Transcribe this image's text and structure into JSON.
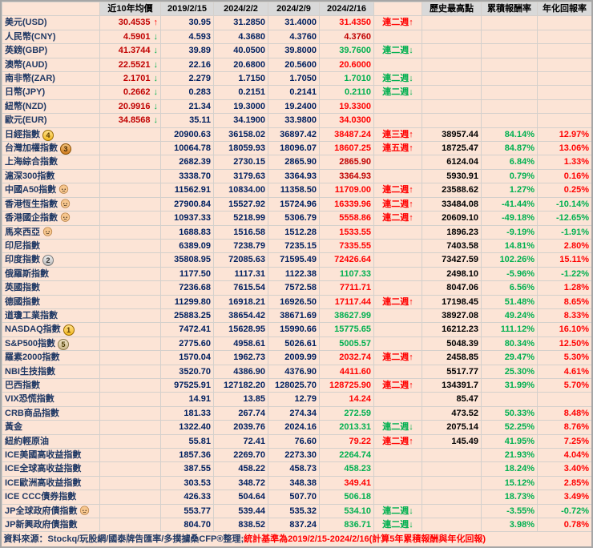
{
  "palette": {
    "bg": "#fce4d6",
    "header-bg": "#d9d9d9",
    "label": "#1f3864",
    "avg": "#c00000",
    "hist": "#002060",
    "up": "#ff0000",
    "down": "#00b050",
    "flat": "#c00000",
    "cum": "#00b050",
    "high": "#000000",
    "note": "#ff0000"
  },
  "chart_data": {
    "type": "table",
    "columns": [
      "",
      "近10年均價",
      "2019/2/15",
      "2024/2/2",
      "2024/2/9",
      "2024/2/16",
      "",
      "歷史最高點",
      "累積報酬率",
      "年化回報率"
    ],
    "rows": [
      {
        "label": "美元(USD)",
        "icon": null,
        "avg10y": "30.4535",
        "trend": "up",
        "d20190215": "30.95",
        "d20240202": "31.2850",
        "d20240209": "31.4000",
        "d20240216": "31.4350",
        "change": "up",
        "streak": "連二週↑",
        "streak_dir": "up",
        "record_high": "",
        "cum_return": "",
        "ann_return": ""
      },
      {
        "label": "人民幣(CNY)",
        "icon": null,
        "avg10y": "4.5901",
        "trend": "down",
        "d20190215": "4.593",
        "d20240202": "4.3680",
        "d20240209": "4.3760",
        "d20240216": "4.3760",
        "change": "flat",
        "streak": "",
        "streak_dir": "",
        "record_high": "",
        "cum_return": "",
        "ann_return": ""
      },
      {
        "label": "英鎊(GBP)",
        "icon": null,
        "avg10y": "41.3744",
        "trend": "down",
        "d20190215": "39.89",
        "d20240202": "40.0500",
        "d20240209": "39.8000",
        "d20240216": "39.7600",
        "change": "down",
        "streak": "連二週↓",
        "streak_dir": "down",
        "record_high": "",
        "cum_return": "",
        "ann_return": ""
      },
      {
        "label": "澳幣(AUD)",
        "icon": null,
        "avg10y": "22.5521",
        "trend": "down",
        "d20190215": "22.16",
        "d20240202": "20.6800",
        "d20240209": "20.5600",
        "d20240216": "20.6000",
        "change": "up",
        "streak": "",
        "streak_dir": "",
        "record_high": "",
        "cum_return": "",
        "ann_return": ""
      },
      {
        "label": "南非幣(ZAR)",
        "icon": null,
        "avg10y": "2.1701",
        "trend": "down",
        "d20190215": "2.279",
        "d20240202": "1.7150",
        "d20240209": "1.7050",
        "d20240216": "1.7010",
        "change": "down",
        "streak": "連二週↓",
        "streak_dir": "down",
        "record_high": "",
        "cum_return": "",
        "ann_return": ""
      },
      {
        "label": "日幣(JPY)",
        "icon": null,
        "avg10y": "0.2662",
        "trend": "down",
        "d20190215": "0.283",
        "d20240202": "0.2151",
        "d20240209": "0.2141",
        "d20240216": "0.2110",
        "change": "down",
        "streak": "連二週↓",
        "streak_dir": "down",
        "record_high": "",
        "cum_return": "",
        "ann_return": ""
      },
      {
        "label": "紐幣(NZD)",
        "icon": null,
        "avg10y": "20.9916",
        "trend": "down",
        "d20190215": "21.34",
        "d20240202": "19.3000",
        "d20240209": "19.2400",
        "d20240216": "19.3300",
        "change": "up",
        "streak": "",
        "streak_dir": "",
        "record_high": "",
        "cum_return": "",
        "ann_return": ""
      },
      {
        "label": "歐元(EUR)",
        "icon": null,
        "avg10y": "34.8568",
        "trend": "down",
        "d20190215": "35.11",
        "d20240202": "34.1900",
        "d20240209": "33.9800",
        "d20240216": "34.0300",
        "change": "up",
        "streak": "",
        "streak_dir": "",
        "record_high": "",
        "cum_return": "",
        "ann_return": ""
      },
      {
        "label": "日經指數",
        "icon": "medal-4",
        "avg10y": "",
        "trend": "",
        "d20190215": "20900.63",
        "d20240202": "36158.02",
        "d20240209": "36897.42",
        "d20240216": "38487.24",
        "change": "up",
        "streak": "連三週↑",
        "streak_dir": "up",
        "record_high": "38957.44",
        "cum_return": "84.14%",
        "ann_return": "12.97%"
      },
      {
        "label": "台灣加權指數",
        "icon": "medal-3",
        "avg10y": "",
        "trend": "",
        "d20190215": "10064.78",
        "d20240202": "18059.93",
        "d20240209": "18096.07",
        "d20240216": "18607.25",
        "change": "up",
        "streak": "連五週↑",
        "streak_dir": "up",
        "record_high": "18725.47",
        "cum_return": "84.87%",
        "ann_return": "13.06%"
      },
      {
        "label": "上海綜合指數",
        "icon": null,
        "avg10y": "",
        "trend": "",
        "d20190215": "2682.39",
        "d20240202": "2730.15",
        "d20240209": "2865.90",
        "d20240216": "2865.90",
        "change": "flat",
        "streak": "",
        "streak_dir": "",
        "record_high": "6124.04",
        "cum_return": "6.84%",
        "ann_return": "1.33%"
      },
      {
        "label": "滬深300指數",
        "icon": null,
        "avg10y": "",
        "trend": "",
        "d20190215": "3338.70",
        "d20240202": "3179.63",
        "d20240209": "3364.93",
        "d20240216": "3364.93",
        "change": "flat",
        "streak": "",
        "streak_dir": "",
        "record_high": "5930.91",
        "cum_return": "0.79%",
        "ann_return": "0.16%"
      },
      {
        "label": "中國A50指數",
        "icon": "baby",
        "avg10y": "",
        "trend": "",
        "d20190215": "11562.91",
        "d20240202": "10834.00",
        "d20240209": "11358.50",
        "d20240216": "11709.00",
        "change": "up",
        "streak": "連二週↑",
        "streak_dir": "up",
        "record_high": "23588.62",
        "cum_return": "1.27%",
        "ann_return": "0.25%"
      },
      {
        "label": "香港恆生指數",
        "icon": "baby",
        "avg10y": "",
        "trend": "",
        "d20190215": "27900.84",
        "d20240202": "15527.92",
        "d20240209": "15724.96",
        "d20240216": "16339.96",
        "change": "up",
        "streak": "連二週↑",
        "streak_dir": "up",
        "record_high": "33484.08",
        "cum_return": "-41.44%",
        "ann_return": "-10.14%"
      },
      {
        "label": "香港國企指數",
        "icon": "baby",
        "avg10y": "",
        "trend": "",
        "d20190215": "10937.33",
        "d20240202": "5218.99",
        "d20240209": "5306.79",
        "d20240216": "5558.86",
        "change": "up",
        "streak": "連二週↑",
        "streak_dir": "up",
        "record_high": "20609.10",
        "cum_return": "-49.18%",
        "ann_return": "-12.65%"
      },
      {
        "label": "馬來西亞",
        "icon": "baby",
        "avg10y": "",
        "trend": "",
        "d20190215": "1688.83",
        "d20240202": "1516.58",
        "d20240209": "1512.28",
        "d20240216": "1533.55",
        "change": "up",
        "streak": "",
        "streak_dir": "",
        "record_high": "1896.23",
        "cum_return": "-9.19%",
        "ann_return": "-1.91%"
      },
      {
        "label": "印尼指數",
        "icon": null,
        "avg10y": "",
        "trend": "",
        "d20190215": "6389.09",
        "d20240202": "7238.79",
        "d20240209": "7235.15",
        "d20240216": "7335.55",
        "change": "up",
        "streak": "",
        "streak_dir": "",
        "record_high": "7403.58",
        "cum_return": "14.81%",
        "ann_return": "2.80%"
      },
      {
        "label": "印度指數",
        "icon": "medal-2",
        "avg10y": "",
        "trend": "",
        "d20190215": "35808.95",
        "d20240202": "72085.63",
        "d20240209": "71595.49",
        "d20240216": "72426.64",
        "change": "up",
        "streak": "",
        "streak_dir": "",
        "record_high": "73427.59",
        "cum_return": "102.26%",
        "ann_return": "15.11%"
      },
      {
        "label": "俄羅斯指數",
        "icon": null,
        "avg10y": "",
        "trend": "",
        "d20190215": "1177.50",
        "d20240202": "1117.31",
        "d20240209": "1122.38",
        "d20240216": "1107.33",
        "change": "down",
        "streak": "",
        "streak_dir": "",
        "record_high": "2498.10",
        "cum_return": "-5.96%",
        "ann_return": "-1.22%"
      },
      {
        "label": "英國指數",
        "icon": null,
        "avg10y": "",
        "trend": "",
        "d20190215": "7236.68",
        "d20240202": "7615.54",
        "d20240209": "7572.58",
        "d20240216": "7711.71",
        "change": "up",
        "streak": "",
        "streak_dir": "",
        "record_high": "8047.06",
        "cum_return": "6.56%",
        "ann_return": "1.28%"
      },
      {
        "label": "德國指數",
        "icon": null,
        "avg10y": "",
        "trend": "",
        "d20190215": "11299.80",
        "d20240202": "16918.21",
        "d20240209": "16926.50",
        "d20240216": "17117.44",
        "change": "up",
        "streak": "連二週↑",
        "streak_dir": "up",
        "record_high": "17198.45",
        "cum_return": "51.48%",
        "ann_return": "8.65%"
      },
      {
        "label": "道瓊工業指數",
        "icon": null,
        "avg10y": "",
        "trend": "",
        "d20190215": "25883.25",
        "d20240202": "38654.42",
        "d20240209": "38671.69",
        "d20240216": "38627.99",
        "change": "down",
        "streak": "",
        "streak_dir": "",
        "record_high": "38927.08",
        "cum_return": "49.24%",
        "ann_return": "8.33%"
      },
      {
        "label": "NASDAQ指數",
        "icon": "medal-1",
        "avg10y": "",
        "trend": "",
        "d20190215": "7472.41",
        "d20240202": "15628.95",
        "d20240209": "15990.66",
        "d20240216": "15775.65",
        "change": "down",
        "streak": "",
        "streak_dir": "",
        "record_high": "16212.23",
        "cum_return": "111.12%",
        "ann_return": "16.10%"
      },
      {
        "label": "S&P500指數",
        "icon": "medal-5",
        "avg10y": "",
        "trend": "",
        "d20190215": "2775.60",
        "d20240202": "4958.61",
        "d20240209": "5026.61",
        "d20240216": "5005.57",
        "change": "down",
        "streak": "",
        "streak_dir": "",
        "record_high": "5048.39",
        "cum_return": "80.34%",
        "ann_return": "12.50%"
      },
      {
        "label": "羅素2000指數",
        "icon": null,
        "avg10y": "",
        "trend": "",
        "d20190215": "1570.04",
        "d20240202": "1962.73",
        "d20240209": "2009.99",
        "d20240216": "2032.74",
        "change": "up",
        "streak": "連二週↑",
        "streak_dir": "up",
        "record_high": "2458.85",
        "cum_return": "29.47%",
        "ann_return": "5.30%"
      },
      {
        "label": "NBI生技指數",
        "icon": null,
        "avg10y": "",
        "trend": "",
        "d20190215": "3520.70",
        "d20240202": "4386.90",
        "d20240209": "4376.90",
        "d20240216": "4411.60",
        "change": "up",
        "streak": "",
        "streak_dir": "",
        "record_high": "5517.77",
        "cum_return": "25.30%",
        "ann_return": "4.61%"
      },
      {
        "label": "巴西指數",
        "icon": null,
        "avg10y": "",
        "trend": "",
        "d20190215": "97525.91",
        "d20240202": "127182.20",
        "d20240209": "128025.70",
        "d20240216": "128725.90",
        "change": "up",
        "streak": "連二週↑",
        "streak_dir": "up",
        "record_high": "134391.7",
        "cum_return": "31.99%",
        "ann_return": "5.70%"
      },
      {
        "label": "VIX恐慌指數",
        "icon": null,
        "avg10y": "",
        "trend": "",
        "d20190215": "14.91",
        "d20240202": "13.85",
        "d20240209": "12.79",
        "d20240216": "14.24",
        "change": "up",
        "streak": "",
        "streak_dir": "",
        "record_high": "85.47",
        "cum_return": "",
        "ann_return": ""
      },
      {
        "label": "CRB商品指數",
        "icon": null,
        "avg10y": "",
        "trend": "",
        "d20190215": "181.33",
        "d20240202": "267.74",
        "d20240209": "274.34",
        "d20240216": "272.59",
        "change": "down",
        "streak": "",
        "streak_dir": "",
        "record_high": "473.52",
        "cum_return": "50.33%",
        "ann_return": "8.48%"
      },
      {
        "label": "黃金",
        "icon": null,
        "avg10y": "",
        "trend": "",
        "d20190215": "1322.40",
        "d20240202": "2039.76",
        "d20240209": "2024.16",
        "d20240216": "2013.31",
        "change": "down",
        "streak": "連二週↓",
        "streak_dir": "down",
        "record_high": "2075.14",
        "cum_return": "52.25%",
        "ann_return": "8.76%"
      },
      {
        "label": "紐約輕原油",
        "icon": null,
        "avg10y": "",
        "trend": "",
        "d20190215": "55.81",
        "d20240202": "72.41",
        "d20240209": "76.60",
        "d20240216": "79.22",
        "change": "up",
        "streak": "連二週↑",
        "streak_dir": "up",
        "record_high": "145.49",
        "cum_return": "41.95%",
        "ann_return": "7.25%"
      },
      {
        "label": "ICE美國高收益指數",
        "icon": null,
        "avg10y": "",
        "trend": "",
        "d20190215": "1857.36",
        "d20240202": "2269.70",
        "d20240209": "2273.30",
        "d20240216": "2264.74",
        "change": "down",
        "streak": "",
        "streak_dir": "",
        "record_high": "",
        "cum_return": "21.93%",
        "ann_return": "4.04%"
      },
      {
        "label": "ICE全球高收益指數",
        "icon": null,
        "avg10y": "",
        "trend": "",
        "d20190215": "387.55",
        "d20240202": "458.22",
        "d20240209": "458.73",
        "d20240216": "458.23",
        "change": "down",
        "streak": "",
        "streak_dir": "",
        "record_high": "",
        "cum_return": "18.24%",
        "ann_return": "3.40%"
      },
      {
        "label": "ICE歐洲高收益指數",
        "icon": null,
        "avg10y": "",
        "trend": "",
        "d20190215": "303.53",
        "d20240202": "348.72",
        "d20240209": "348.38",
        "d20240216": "349.41",
        "change": "up",
        "streak": "",
        "streak_dir": "",
        "record_high": "",
        "cum_return": "15.12%",
        "ann_return": "2.85%"
      },
      {
        "label": "ICE CCC債券指數",
        "icon": null,
        "avg10y": "",
        "trend": "",
        "d20190215": "426.33",
        "d20240202": "504.64",
        "d20240209": "507.70",
        "d20240216": "506.18",
        "change": "down",
        "streak": "",
        "streak_dir": "",
        "record_high": "",
        "cum_return": "18.73%",
        "ann_return": "3.49%"
      },
      {
        "label": "JP全球政府債指數",
        "icon": "baby",
        "avg10y": "",
        "trend": "",
        "d20190215": "553.77",
        "d20240202": "539.44",
        "d20240209": "535.32",
        "d20240216": "534.10",
        "change": "down",
        "streak": "連二週↓",
        "streak_dir": "down",
        "record_high": "",
        "cum_return": "-3.55%",
        "ann_return": "-0.72%"
      },
      {
        "label": "JP新興政府債指數",
        "icon": null,
        "avg10y": "",
        "trend": "",
        "d20190215": "804.70",
        "d20240202": "838.52",
        "d20240209": "837.24",
        "d20240216": "836.71",
        "change": "down",
        "streak": "連二週↓",
        "streak_dir": "down",
        "record_high": "",
        "cum_return": "3.98%",
        "ann_return": "0.78%"
      }
    ],
    "footer": {
      "source": "資料來源：Stockq/玩股網/國泰牌告匯率/多撲擄桑CFP®整理;",
      "note": "統計基準為2019/2/15-2024/2/16(計算5年累積報酬與年化回報)"
    }
  }
}
